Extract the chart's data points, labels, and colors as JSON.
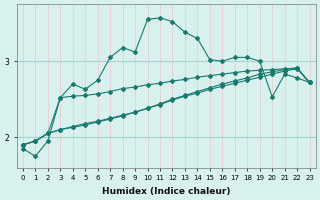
{
  "xlabel": "Humidex (Indice chaleur)",
  "bg_color": "#d8f0ee",
  "grid_color_v": "#e8c8c8",
  "grid_color_h": "#a8d4d0",
  "line_color": "#1a7a6e",
  "x_values": [
    0,
    1,
    2,
    3,
    4,
    5,
    6,
    7,
    8,
    9,
    10,
    11,
    12,
    13,
    14,
    15,
    16,
    17,
    18,
    19,
    20,
    21,
    22,
    23
  ],
  "series1": [
    1.85,
    1.75,
    1.95,
    2.52,
    2.7,
    2.63,
    2.75,
    3.05,
    3.18,
    3.12,
    3.55,
    3.57,
    3.52,
    3.38,
    3.3,
    3.02,
    3.0,
    3.05,
    3.05,
    3.0,
    2.53,
    2.83,
    2.78,
    2.72
  ],
  "series2": [
    1.9,
    1.95,
    2.05,
    2.52,
    2.54,
    2.55,
    2.57,
    2.6,
    2.64,
    2.66,
    2.69,
    2.71,
    2.74,
    2.76,
    2.79,
    2.81,
    2.83,
    2.85,
    2.87,
    2.88,
    2.89,
    2.9,
    2.91,
    2.72
  ],
  "series3": [
    1.9,
    1.95,
    2.05,
    2.1,
    2.14,
    2.18,
    2.21,
    2.25,
    2.29,
    2.33,
    2.38,
    2.43,
    2.49,
    2.54,
    2.58,
    2.63,
    2.67,
    2.71,
    2.75,
    2.79,
    2.83,
    2.87,
    2.9,
    2.72
  ],
  "series4": [
    1.9,
    1.95,
    2.05,
    2.1,
    2.13,
    2.16,
    2.2,
    2.24,
    2.28,
    2.33,
    2.38,
    2.44,
    2.5,
    2.55,
    2.6,
    2.65,
    2.7,
    2.74,
    2.78,
    2.83,
    2.86,
    2.89,
    2.91,
    2.72
  ],
  "ylim": [
    1.6,
    3.75
  ],
  "yticks": [
    2,
    3
  ],
  "label_fontsize": 6.5,
  "tick_fontsize": 5
}
